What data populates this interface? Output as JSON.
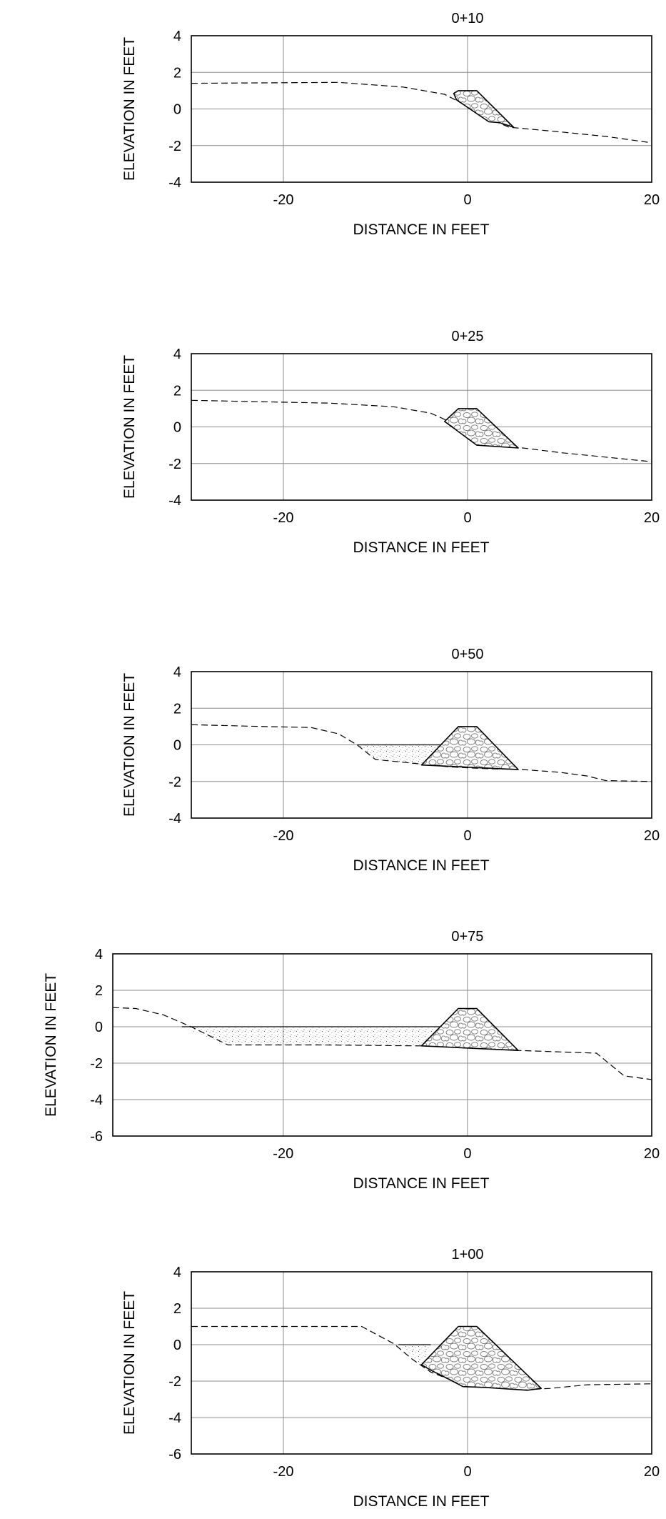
{
  "chart_data": [
    {
      "type": "cross-section",
      "title": "0+10",
      "xlabel": "DISTANCE IN FEET",
      "ylabel": "ELEVATION IN FEET",
      "xlim": [
        -30,
        20
      ],
      "ylim": [
        -4,
        4
      ],
      "xticks": [
        -20,
        0,
        20
      ],
      "yticks": [
        -4,
        -2,
        0,
        2,
        4
      ],
      "x_tick_labels": [
        "-20",
        "0",
        "20"
      ],
      "y_tick_labels": [
        "-4",
        "-2",
        "0",
        "2",
        "4"
      ],
      "grid": true,
      "existing_ground": [
        [
          -30,
          1.4
        ],
        [
          -14,
          1.45
        ],
        [
          -7,
          1.2
        ],
        [
          -2.5,
          0.8
        ],
        [
          0,
          0.15
        ],
        [
          2,
          -0.45
        ],
        [
          4.5,
          -1.0
        ],
        [
          10,
          -1.25
        ],
        [
          15,
          -1.5
        ],
        [
          20,
          -1.85
        ]
      ],
      "riprap": [
        [
          -1.5,
          0.85
        ],
        [
          -1,
          1.0
        ],
        [
          1,
          1.0
        ],
        [
          5,
          -1.0
        ],
        [
          3.5,
          -0.75
        ],
        [
          2.3,
          -0.7
        ],
        [
          -1.2,
          0.5
        ]
      ],
      "fill": []
    },
    {
      "type": "cross-section",
      "title": "0+25",
      "xlabel": "DISTANCE IN FEET",
      "ylabel": "ELEVATION IN FEET",
      "xlim": [
        -30,
        20
      ],
      "ylim": [
        -4,
        4
      ],
      "xticks": [
        -20,
        0,
        20
      ],
      "yticks": [
        -4,
        -2,
        0,
        2,
        4
      ],
      "x_tick_labels": [
        "-20",
        "0",
        "20"
      ],
      "y_tick_labels": [
        "-4",
        "-2",
        "0",
        "2",
        "4"
      ],
      "grid": true,
      "existing_ground": [
        [
          -30,
          1.45
        ],
        [
          -15,
          1.3
        ],
        [
          -8,
          1.1
        ],
        [
          -4,
          0.75
        ],
        [
          -2,
          0.3
        ],
        [
          0,
          -0.5
        ],
        [
          3,
          -1.0
        ],
        [
          6,
          -1.15
        ],
        [
          10,
          -1.4
        ],
        [
          15,
          -1.65
        ],
        [
          20,
          -1.9
        ]
      ],
      "riprap": [
        [
          -2.5,
          0.3
        ],
        [
          -1,
          1.0
        ],
        [
          1,
          1.0
        ],
        [
          5.5,
          -1.15
        ],
        [
          1,
          -1.0
        ],
        [
          -2.5,
          0.3
        ]
      ],
      "fill": []
    },
    {
      "type": "cross-section",
      "title": "0+50",
      "xlabel": "DISTANCE IN FEET",
      "ylabel": "ELEVATION IN FEET",
      "xlim": [
        -30,
        20
      ],
      "ylim": [
        -4,
        4
      ],
      "xticks": [
        -20,
        0,
        20
      ],
      "yticks": [
        -4,
        -2,
        0,
        2,
        4
      ],
      "x_tick_labels": [
        "-20",
        "0",
        "20"
      ],
      "y_tick_labels": [
        "-4",
        "-2",
        "0",
        "2",
        "4"
      ],
      "grid": true,
      "existing_ground": [
        [
          -30,
          1.1
        ],
        [
          -22,
          1.0
        ],
        [
          -17,
          0.95
        ],
        [
          -14,
          0.6
        ],
        [
          -12,
          0.0
        ],
        [
          -10,
          -0.8
        ],
        [
          -6,
          -1.0
        ],
        [
          -2,
          -1.2
        ],
        [
          2,
          -1.3
        ],
        [
          6,
          -1.35
        ],
        [
          10,
          -1.5
        ],
        [
          13,
          -1.7
        ],
        [
          15,
          -1.95
        ],
        [
          20,
          -2.0
        ]
      ],
      "riprap": [
        [
          -5,
          -1.1
        ],
        [
          -1,
          1.0
        ],
        [
          1,
          1.0
        ],
        [
          5.5,
          -1.35
        ],
        [
          -5,
          -1.1
        ]
      ],
      "fill": [
        [
          -12,
          0.0
        ],
        [
          -2.2,
          0.0
        ],
        [
          -5,
          -1.1
        ],
        [
          -10,
          -0.8
        ]
      ]
    },
    {
      "type": "cross-section",
      "title": "0+75",
      "xlabel": "DISTANCE IN FEET",
      "ylabel": "ELEVATION IN FEET",
      "xlim": [
        -38.5,
        20
      ],
      "ylim": [
        -6,
        4
      ],
      "xticks": [
        -20,
        0,
        20
      ],
      "yticks": [
        -6,
        -4,
        -2,
        0,
        2,
        4
      ],
      "x_tick_labels": [
        "-20",
        "0",
        "20"
      ],
      "y_tick_labels": [
        "-6",
        "-4",
        "-2",
        "0",
        "2",
        "4"
      ],
      "grid": true,
      "existing_ground": [
        [
          -38.5,
          1.05
        ],
        [
          -36,
          1.0
        ],
        [
          -33,
          0.65
        ],
        [
          -30,
          0.0
        ],
        [
          -26,
          -1.0
        ],
        [
          -16,
          -1.0
        ],
        [
          -5,
          -1.05
        ],
        [
          0,
          -1.15
        ],
        [
          5.5,
          -1.3
        ],
        [
          14,
          -1.45
        ],
        [
          17,
          -2.7
        ],
        [
          20,
          -2.9
        ]
      ],
      "riprap": [
        [
          -5,
          -1.05
        ],
        [
          -1,
          1.0
        ],
        [
          1,
          1.0
        ],
        [
          5.5,
          -1.3
        ],
        [
          -5,
          -1.05
        ]
      ],
      "fill": [
        [
          -31,
          0.0
        ],
        [
          -3,
          0.0
        ],
        [
          -5,
          -1.05
        ],
        [
          -26,
          -1.0
        ]
      ]
    },
    {
      "type": "cross-section",
      "title": "1+00",
      "xlabel": "DISTANCE IN FEET",
      "ylabel": "ELEVATION IN FEET",
      "xlim": [
        -30,
        20
      ],
      "ylim": [
        -6,
        4
      ],
      "xticks": [
        -20,
        0,
        20
      ],
      "yticks": [
        -6,
        -4,
        -2,
        0,
        2,
        4
      ],
      "x_tick_labels": [
        "-20",
        "0",
        "20"
      ],
      "y_tick_labels": [
        "-6",
        "-4",
        "-2",
        "0",
        "2",
        "4"
      ],
      "grid": true,
      "existing_ground": [
        [
          -30,
          1.0
        ],
        [
          -21,
          1.0
        ],
        [
          -11.5,
          1.0
        ],
        [
          -8,
          0.05
        ],
        [
          -6,
          -0.8
        ],
        [
          -4,
          -1.5
        ],
        [
          -2,
          -1.9
        ],
        [
          0,
          -2.3
        ],
        [
          3,
          -2.35
        ],
        [
          7,
          -2.45
        ],
        [
          9,
          -2.4
        ],
        [
          13,
          -2.2
        ],
        [
          20,
          -2.15
        ]
      ],
      "riprap": [
        [
          -5,
          -1.1
        ],
        [
          -1,
          1.0
        ],
        [
          1,
          1.0
        ],
        [
          8,
          -2.4
        ],
        [
          6.5,
          -2.5
        ],
        [
          2,
          -2.35
        ],
        [
          -0.5,
          -2.3
        ],
        [
          -2,
          -1.9
        ],
        [
          -4,
          -1.4
        ],
        [
          -5,
          -1.1
        ]
      ],
      "fill": [
        [
          -7.5,
          0.0
        ],
        [
          -4,
          0.0
        ],
        [
          -5,
          -1.1
        ],
        [
          -6.5,
          -0.4
        ]
      ]
    }
  ]
}
